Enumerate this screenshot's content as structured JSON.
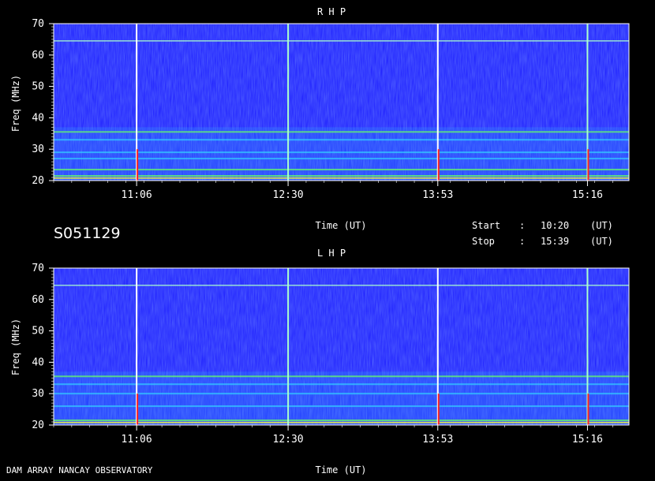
{
  "panels": [
    {
      "title": "R H P",
      "ylabel": "Freq (MHz)",
      "xlabel": "",
      "show_xlabel": false
    },
    {
      "title": "L H P",
      "ylabel": "Freq (MHz)",
      "xlabel": "Time (UT)",
      "show_xlabel": true
    }
  ],
  "info": {
    "date_code": "S051129",
    "time_label": "Time (UT)",
    "start_label": "Start",
    "start_sep": ":",
    "start_time": "10:20",
    "start_unit": "(UT)",
    "stop_label": "Stop",
    "stop_sep": ":",
    "stop_time": "15:39",
    "stop_unit": "(UT)"
  },
  "footer": {
    "observatory": "DAM ARRAY   NANCAY OBSERVATORY",
    "time_label": "Time (UT)"
  },
  "colors": {
    "background": "#000000",
    "spectrum_base": "#1a1aff",
    "band_cyan": "#33ccff",
    "band_green": "#66ff66",
    "band_yellow": "#ffff33",
    "burst_red": "#ff2222",
    "gridline_white": "#ffffff",
    "gridline_green": "#aaffcc"
  },
  "chart_data": [
    {
      "type": "heatmap",
      "title": "R H P",
      "ylabel": "Freq (MHz)",
      "xlabel": "",
      "x_ticks": [
        "11:06",
        "12:30",
        "13:53",
        "15:16"
      ],
      "x_tick_minutes": [
        666,
        750,
        833,
        916
      ],
      "x_range_minutes": [
        620,
        939
      ],
      "y_ticks": [
        20,
        30,
        40,
        50,
        60,
        70
      ],
      "ylim": [
        20,
        70
      ],
      "vertical_markers_minutes": [
        666,
        750,
        833,
        916
      ],
      "horizontal_marker_mhz": 64.5,
      "bands_mhz": [
        {
          "freq": 35.5,
          "intensity": "high"
        },
        {
          "freq": 33,
          "intensity": "medium"
        },
        {
          "freq": 29,
          "intensity": "medium"
        },
        {
          "freq": 27,
          "intensity": "medium"
        },
        {
          "freq": 23.5,
          "intensity": "high"
        },
        {
          "freq": 21.5,
          "intensity": "high"
        },
        {
          "freq": 20.8,
          "intensity": "very-high"
        }
      ],
      "bursts_minutes": [
        666,
        833,
        916
      ]
    },
    {
      "type": "heatmap",
      "title": "L H P",
      "ylabel": "Freq (MHz)",
      "xlabel": "Time (UT)",
      "x_ticks": [
        "11:06",
        "12:30",
        "13:53",
        "15:16"
      ],
      "x_tick_minutes": [
        666,
        750,
        833,
        916
      ],
      "x_range_minutes": [
        620,
        939
      ],
      "y_ticks": [
        20,
        30,
        40,
        50,
        60,
        70
      ],
      "ylim": [
        20,
        70
      ],
      "vertical_markers_minutes": [
        666,
        750,
        833,
        916
      ],
      "horizontal_marker_mhz": 64.5,
      "bands_mhz": [
        {
          "freq": 35.5,
          "intensity": "high"
        },
        {
          "freq": 33,
          "intensity": "medium"
        },
        {
          "freq": 30,
          "intensity": "medium"
        },
        {
          "freq": 26,
          "intensity": "medium"
        },
        {
          "freq": 21.5,
          "intensity": "high"
        },
        {
          "freq": 20.8,
          "intensity": "very-high"
        }
      ],
      "bursts_minutes": [
        666,
        833,
        916
      ]
    }
  ]
}
